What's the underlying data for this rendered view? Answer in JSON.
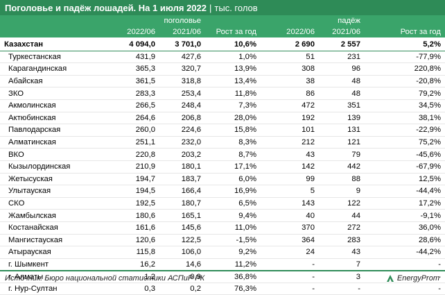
{
  "title": {
    "main": "Поголовье и падёж лошадей. На 1 июля 2022",
    "separator": "|",
    "unit": "тыс. голов"
  },
  "groups": {
    "livestock": "поголовье",
    "deaths": "падёж"
  },
  "columns": [
    "",
    "2022/06",
    "2021/06",
    "Рост за год",
    "2022/06",
    "2021/06",
    "Рост за год"
  ],
  "rows": [
    [
      "Казахстан",
      "4 094,0",
      "3 701,0",
      "10,6%",
      "2 690",
      "2 557",
      "5,2%"
    ],
    [
      "Туркестанская",
      "431,9",
      "427,6",
      "1,0%",
      "51",
      "231",
      "-77,9%"
    ],
    [
      "Карагандинская",
      "365,3",
      "320,7",
      "13,9%",
      "308",
      "96",
      "220,8%"
    ],
    [
      "Абайская",
      "361,5",
      "318,8",
      "13,4%",
      "38",
      "48",
      "-20,8%"
    ],
    [
      "ЗКО",
      "283,3",
      "253,4",
      "11,8%",
      "86",
      "48",
      "79,2%"
    ],
    [
      "Акмолинская",
      "266,5",
      "248,4",
      "7,3%",
      "472",
      "351",
      "34,5%"
    ],
    [
      "Актюбинская",
      "264,6",
      "206,8",
      "28,0%",
      "192",
      "139",
      "38,1%"
    ],
    [
      "Павлодарская",
      "260,0",
      "224,6",
      "15,8%",
      "101",
      "131",
      "-22,9%"
    ],
    [
      "Алматинская",
      "251,1",
      "232,0",
      "8,3%",
      "212",
      "121",
      "75,2%"
    ],
    [
      "ВКО",
      "220,8",
      "203,2",
      "8,7%",
      "43",
      "79",
      "-45,6%"
    ],
    [
      "Кызылординская",
      "210,9",
      "180,1",
      "17,1%",
      "142",
      "442",
      "-67,9%"
    ],
    [
      "Жетысуская",
      "194,7",
      "183,7",
      "6,0%",
      "99",
      "88",
      "12,5%"
    ],
    [
      "Улытауская",
      "194,5",
      "166,4",
      "16,9%",
      "5",
      "9",
      "-44,4%"
    ],
    [
      "СКО",
      "192,5",
      "180,7",
      "6,5%",
      "143",
      "122",
      "17,2%"
    ],
    [
      "Жамбылская",
      "180,6",
      "165,1",
      "9,4%",
      "40",
      "44",
      "-9,1%"
    ],
    [
      "Костанайская",
      "161,6",
      "145,6",
      "11,0%",
      "370",
      "272",
      "36,0%"
    ],
    [
      "Мангистауская",
      "120,6",
      "122,5",
      "-1,5%",
      "364",
      "283",
      "28,6%"
    ],
    [
      "Атырауская",
      "115,8",
      "106,0",
      "9,2%",
      "24",
      "43",
      "-44,2%"
    ],
    [
      "г. Шымкент",
      "16,2",
      "14,6",
      "11,2%",
      "-",
      "7",
      "-"
    ],
    [
      "г. Алматы",
      "1,2",
      "0,9",
      "36,8%",
      "-",
      "3",
      "-"
    ],
    [
      "г. Нур-Султан",
      "0,3",
      "0,2",
      "76,3%",
      "-",
      "-",
      "-"
    ]
  ],
  "footer": {
    "source": "Источник: Бюро национальной статистики АСПиР РК",
    "logo": "EnergyProm",
    "logo_icon": "energyprom-logo-icon"
  },
  "colors": {
    "title_bg": "#2e8b57",
    "header_bg": "#3aa46a",
    "text": "#000000"
  }
}
